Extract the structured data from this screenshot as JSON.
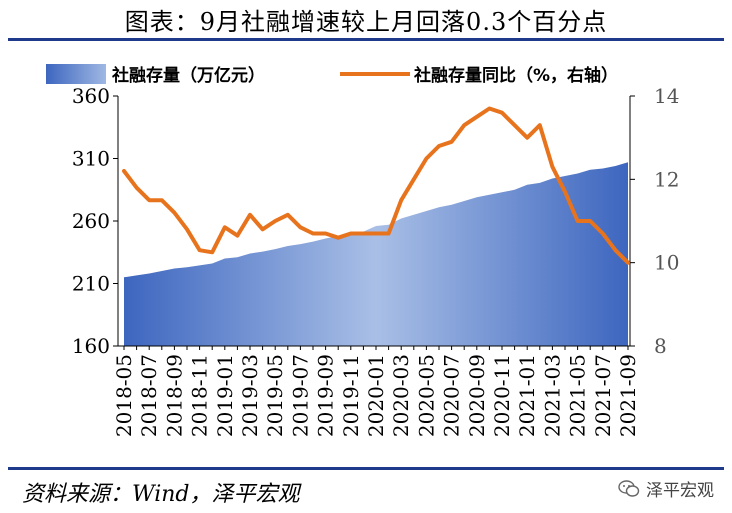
{
  "title": "图表：9月社融增速较上月回落0.3个百分点",
  "source": "资料来源：Wind，泽平宏观",
  "watermark": "泽平宏观",
  "colors": {
    "area": "#4a72c4",
    "area_light": "#a9bfe6",
    "line": "#e8731d",
    "rule": "#1f3a8a"
  },
  "chart_data": {
    "type": "area+line",
    "categories": [
      "2018-05",
      "2018-06",
      "2018-07",
      "2018-08",
      "2018-09",
      "2018-10",
      "2018-11",
      "2018-12",
      "2019-01",
      "2019-02",
      "2019-03",
      "2019-04",
      "2019-05",
      "2019-06",
      "2019-07",
      "2019-08",
      "2019-09",
      "2019-10",
      "2019-11",
      "2019-12",
      "2020-01",
      "2020-02",
      "2020-03",
      "2020-04",
      "2020-05",
      "2020-06",
      "2020-07",
      "2020-08",
      "2020-09",
      "2020-10",
      "2020-11",
      "2020-12",
      "2021-01",
      "2021-02",
      "2021-03",
      "2021-04",
      "2021-05",
      "2021-06",
      "2021-07",
      "2021-08",
      "2021-09"
    ],
    "tick_labels": [
      "2018-05",
      "2018-07",
      "2018-09",
      "2018-11",
      "2019-01",
      "2019-03",
      "2019-05",
      "2019-07",
      "2019-09",
      "2019-11",
      "2020-01",
      "2020-03",
      "2020-05",
      "2020-07",
      "2020-09",
      "2020-11",
      "2021-01",
      "2021-03",
      "2021-05",
      "2021-07",
      "2021-09"
    ],
    "series": [
      {
        "name": "社融存量（万亿元）",
        "axis": "left",
        "type": "area",
        "values": [
          215,
          216.5,
          218,
          220,
          222,
          223,
          224.5,
          226,
          230,
          231,
          234,
          235.5,
          237.5,
          240,
          241.5,
          243.5,
          246,
          248,
          250,
          251.5,
          256,
          257,
          262,
          265,
          268,
          271,
          273,
          276,
          279,
          281,
          283,
          285,
          289,
          290.5,
          294,
          296,
          298,
          301,
          302,
          304,
          307
        ]
      },
      {
        "name": "社融存量同比（%，右轴）",
        "axis": "right",
        "type": "line",
        "values": [
          12.2,
          11.8,
          11.5,
          11.5,
          11.2,
          10.8,
          10.3,
          10.25,
          10.85,
          10.65,
          11.15,
          10.8,
          11.0,
          11.15,
          10.85,
          10.7,
          10.7,
          10.6,
          10.7,
          10.7,
          10.7,
          10.7,
          11.5,
          12.0,
          12.5,
          12.8,
          12.9,
          13.3,
          13.5,
          13.7,
          13.6,
          13.3,
          13.0,
          13.3,
          12.3,
          11.7,
          11.0,
          11.0,
          10.7,
          10.3,
          10.0
        ]
      }
    ],
    "yleft": {
      "lim": [
        160,
        360
      ],
      "ticks": [
        160,
        210,
        260,
        310,
        360
      ]
    },
    "yright": {
      "lim": [
        8,
        14
      ],
      "ticks": [
        8,
        10,
        12,
        14
      ]
    },
    "legend_position": "top"
  }
}
